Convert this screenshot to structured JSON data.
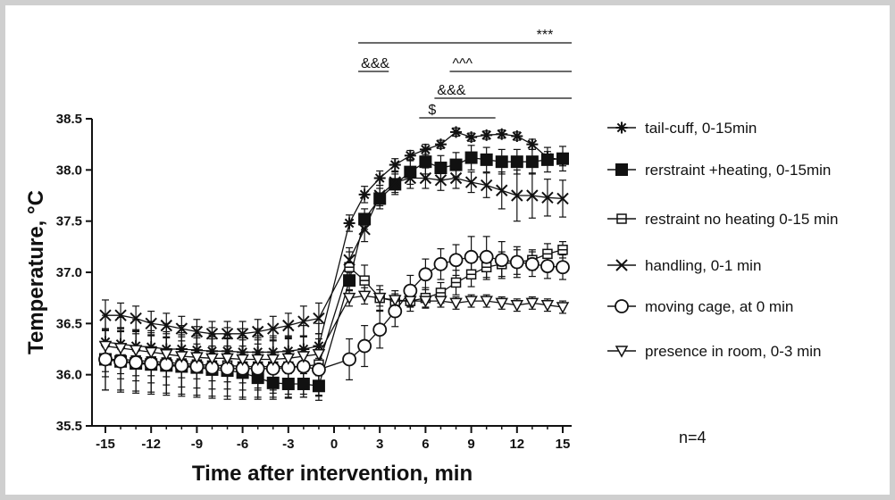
{
  "chart_data": {
    "type": "line",
    "xlabel": "Time after intervention, min",
    "ylabel": "Temperature, °C",
    "xlim": [
      -15.5,
      15.5
    ],
    "ylim": [
      35.5,
      38.5
    ],
    "xticks": [
      -15,
      -12,
      -9,
      -6,
      -3,
      0,
      3,
      6,
      9,
      12,
      15
    ],
    "yticks": [
      35.5,
      36.0,
      36.5,
      37.0,
      37.5,
      38.0,
      38.5
    ],
    "grid": false,
    "legend_position": "right",
    "x": [
      -15,
      -14,
      -13,
      -12,
      -11,
      -10,
      -9,
      -8,
      -7,
      -6,
      -5,
      -4,
      -3,
      -2,
      -1,
      1,
      2,
      3,
      4,
      5,
      6,
      7,
      8,
      9,
      10,
      11,
      12,
      13,
      14,
      15
    ],
    "series": [
      {
        "name": "tail-cuff, 0-15min",
        "marker": "asterisk",
        "values": [
          36.32,
          36.3,
          36.28,
          36.27,
          36.25,
          36.25,
          36.24,
          36.23,
          36.23,
          36.22,
          36.22,
          36.22,
          36.23,
          36.25,
          36.28,
          37.48,
          37.76,
          37.92,
          38.05,
          38.14,
          38.2,
          38.25,
          38.37,
          38.32,
          38.34,
          38.35,
          38.33,
          38.25,
          38.12,
          38.1
        ],
        "errors": [
          0.12,
          0.12,
          0.12,
          0.12,
          0.12,
          0.12,
          0.12,
          0.12,
          0.12,
          0.12,
          0.12,
          0.12,
          0.12,
          0.12,
          0.12,
          0.08,
          0.08,
          0.07,
          0.06,
          0.05,
          0.05,
          0.04,
          0.04,
          0.04,
          0.04,
          0.04,
          0.04,
          0.05,
          0.06,
          0.06
        ]
      },
      {
        "name": "rerstraint +heating, 0-15min",
        "marker": "square-filled",
        "values": [
          36.15,
          36.13,
          36.11,
          36.1,
          36.09,
          36.08,
          36.07,
          36.05,
          36.04,
          36.02,
          35.97,
          35.92,
          35.91,
          35.91,
          35.89,
          36.92,
          37.52,
          37.72,
          37.86,
          37.98,
          38.08,
          38.02,
          38.05,
          38.12,
          38.1,
          38.08,
          38.08,
          38.08,
          38.1,
          38.11
        ],
        "errors": [
          0.12,
          0.12,
          0.12,
          0.11,
          0.11,
          0.11,
          0.11,
          0.11,
          0.11,
          0.1,
          0.1,
          0.1,
          0.1,
          0.1,
          0.1,
          0.1,
          0.1,
          0.1,
          0.1,
          0.12,
          0.12,
          0.12,
          0.12,
          0.12,
          0.12,
          0.12,
          0.12,
          0.12,
          0.12,
          0.12
        ]
      },
      {
        "name": "restraint no heating 0-15 min",
        "marker": "square-crossed",
        "values": [
          36.15,
          36.15,
          36.14,
          36.13,
          36.12,
          36.11,
          36.1,
          36.09,
          36.09,
          36.08,
          36.08,
          36.08,
          36.08,
          36.08,
          36.1,
          37.05,
          36.92,
          36.75,
          36.72,
          36.72,
          36.75,
          36.8,
          36.9,
          36.98,
          37.05,
          37.08,
          37.1,
          37.12,
          37.18,
          37.22
        ],
        "errors": [
          0.3,
          0.3,
          0.3,
          0.3,
          0.3,
          0.3,
          0.3,
          0.3,
          0.3,
          0.3,
          0.3,
          0.3,
          0.3,
          0.3,
          0.3,
          0.15,
          0.15,
          0.12,
          0.1,
          0.1,
          0.1,
          0.1,
          0.12,
          0.12,
          0.12,
          0.12,
          0.12,
          0.1,
          0.1,
          0.08
        ]
      },
      {
        "name": "handling, 0-1 min",
        "marker": "x",
        "values": [
          36.58,
          36.58,
          36.55,
          36.5,
          36.48,
          36.45,
          36.42,
          36.4,
          36.4,
          36.4,
          36.42,
          36.45,
          36.48,
          36.52,
          36.55,
          37.12,
          37.42,
          37.75,
          37.88,
          37.92,
          37.92,
          37.9,
          37.92,
          37.88,
          37.85,
          37.8,
          37.75,
          37.75,
          37.73,
          37.72
        ],
        "errors": [
          0.15,
          0.12,
          0.12,
          0.12,
          0.12,
          0.12,
          0.12,
          0.12,
          0.12,
          0.12,
          0.12,
          0.12,
          0.12,
          0.15,
          0.15,
          0.12,
          0.12,
          0.1,
          0.1,
          0.1,
          0.1,
          0.1,
          0.1,
          0.1,
          0.12,
          0.18,
          0.25,
          0.22,
          0.18,
          0.18
        ]
      },
      {
        "name": "moving cage, at 0 min",
        "marker": "circle-open",
        "values": [
          36.15,
          36.13,
          36.12,
          36.11,
          36.1,
          36.09,
          36.08,
          36.07,
          36.06,
          36.06,
          36.06,
          36.06,
          36.07,
          36.08,
          36.05,
          36.15,
          36.28,
          36.44,
          36.62,
          36.82,
          36.98,
          37.08,
          37.12,
          37.15,
          37.15,
          37.12,
          37.1,
          37.08,
          37.06,
          37.05
        ],
        "errors": [
          0.3,
          0.3,
          0.3,
          0.3,
          0.3,
          0.3,
          0.3,
          0.3,
          0.3,
          0.3,
          0.3,
          0.3,
          0.3,
          0.3,
          0.3,
          0.2,
          0.2,
          0.18,
          0.15,
          0.15,
          0.15,
          0.15,
          0.15,
          0.2,
          0.2,
          0.18,
          0.15,
          0.12,
          0.12,
          0.12
        ]
      },
      {
        "name": "presence in room, 0-3 min",
        "marker": "triangle-down",
        "values": [
          36.28,
          36.26,
          36.24,
          36.22,
          36.2,
          36.18,
          36.17,
          36.16,
          36.16,
          36.15,
          36.15,
          36.15,
          36.16,
          36.18,
          36.2,
          36.75,
          36.77,
          36.75,
          36.73,
          36.72,
          36.72,
          36.72,
          36.7,
          36.72,
          36.72,
          36.7,
          36.68,
          36.7,
          36.68,
          36.66
        ],
        "errors": [
          0.3,
          0.3,
          0.3,
          0.3,
          0.3,
          0.3,
          0.3,
          0.3,
          0.3,
          0.3,
          0.3,
          0.3,
          0.3,
          0.3,
          0.3,
          0.08,
          0.08,
          0.08,
          0.06,
          0.06,
          0.06,
          0.06,
          0.06,
          0.06,
          0.06,
          0.06,
          0.06,
          0.06,
          0.06,
          0.06
        ]
      }
    ],
    "significance_bars": [
      {
        "label": "***",
        "x_start": 1,
        "x_end": 15
      },
      {
        "label": "&&&",
        "x_start": 1,
        "x_end": 3
      },
      {
        "label": "&&&",
        "x_start": 6,
        "x_end": 15
      },
      {
        "label": "^^^",
        "x_start": 7,
        "x_end": 15
      },
      {
        "label": "$",
        "x_start": 5,
        "x_end": 10
      }
    ],
    "annotation": "n=4"
  }
}
